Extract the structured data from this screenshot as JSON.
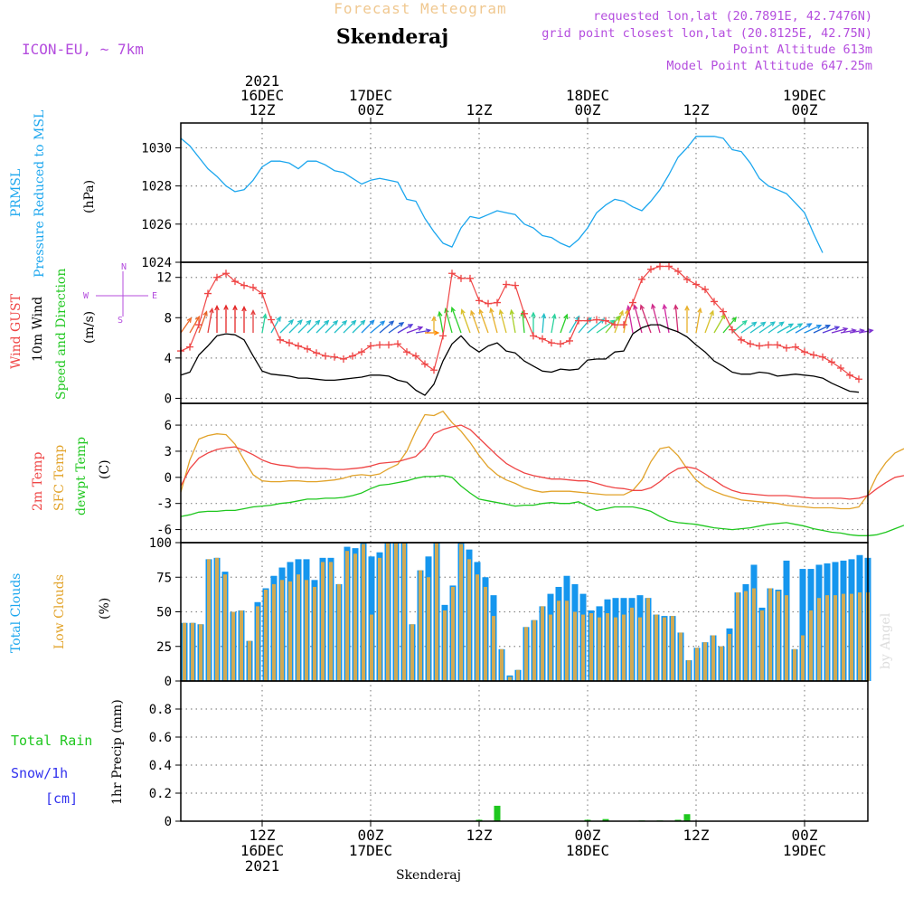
{
  "header": {
    "subtitle": "Forecast Meteogram",
    "location": "Skenderaj",
    "model": "ICON-EU, ~ 7km",
    "requested": "requested lon,lat (20.7891E, 42.7476N)",
    "gridpoint": "grid point closest lon,lat (20.8125E, 42.75N)",
    "point_alt": "Point Altitude 613m",
    "model_alt": "Model Point Altitude 647.25m"
  },
  "watermark": "by Angel",
  "footer_location": "Skenderaj",
  "compass": {
    "n": "N",
    "s": "S",
    "e": "E",
    "w": "W"
  },
  "colors": {
    "prmsl": "#1ba6ee",
    "gust": "#ef4545",
    "wind10m": "#000000",
    "t2m": "#ef4545",
    "sfc": "#e2a32a",
    "dewpt": "#1fc71f",
    "total_cloud": "#1596ee",
    "low_cloud": "#d0aa55",
    "rain": "#1fc71f",
    "snow": "#3333ee",
    "title_purple": "#b44dde",
    "subtitle": "#f0c890"
  },
  "labels": {
    "p1": [
      "PRMSL",
      "Pressure Reduced to MSL",
      "(hPa)"
    ],
    "p2": [
      "Wind GUST",
      "10m Wind",
      "Speed and Direction",
      "(m/s)"
    ],
    "p3": [
      "2m Temp",
      "SFC Temp",
      "dewpt Temp",
      "(C)"
    ],
    "p4": [
      "Total Clouds",
      "Low Clouds",
      "(%)"
    ],
    "p5": [
      "Total  Rain",
      "Snow/1h",
      "[cm]",
      "1hr Precip (mm)"
    ]
  },
  "chart_data": [
    {
      "type": "line",
      "title": "PRMSL Pressure Reduced to MSL",
      "ylabel": "(hPa)",
      "ylim": [
        1024,
        1031.3
      ],
      "yticks": [
        1024,
        1026,
        1028,
        1030
      ],
      "x_start_hour": 3,
      "x_step_hours": 1,
      "x_ticks": [
        {
          "hour": 12,
          "top": [
            "2021",
            "16DEC",
            "12Z"
          ],
          "bottom": [
            "12Z",
            "16DEC",
            "2021"
          ]
        },
        {
          "hour": 24,
          "top": [
            "17DEC",
            "00Z"
          ],
          "bottom": [
            "00Z",
            "17DEC"
          ]
        },
        {
          "hour": 36,
          "top": [
            "12Z"
          ],
          "bottom": [
            "12Z"
          ]
        },
        {
          "hour": 48,
          "top": [
            "18DEC",
            "00Z"
          ],
          "bottom": [
            "00Z",
            "18DEC"
          ]
        },
        {
          "hour": 60,
          "top": [
            "12Z"
          ],
          "bottom": [
            "12Z"
          ]
        },
        {
          "hour": 72,
          "top": [
            "19DEC",
            "00Z"
          ],
          "bottom": [
            "00Z",
            "19DEC"
          ]
        }
      ],
      "series": [
        {
          "name": "PRMSL",
          "values": [
            1030.5,
            1030.1,
            1029.5,
            1028.9,
            1028.5,
            1028.0,
            1027.7,
            1027.8,
            1028.3,
            1029.0,
            1029.3,
            1029.3,
            1029.2,
            1028.9,
            1029.3,
            1029.3,
            1029.1,
            1028.8,
            1028.7,
            1028.4,
            1028.1,
            1028.3,
            1028.4,
            1028.3,
            1028.2,
            1027.3,
            1027.2,
            1026.3,
            1025.6,
            1025.0,
            1024.8,
            1025.8,
            1026.4,
            1026.3,
            1026.5,
            1026.7,
            1026.6,
            1026.5,
            1026.0,
            1025.8,
            1025.4,
            1025.3,
            1025.0,
            1024.8,
            1025.2,
            1025.8,
            1026.6,
            1027.0,
            1027.3,
            1027.2,
            1026.9,
            1026.7,
            1027.2,
            1027.8,
            1028.6,
            1029.5,
            1030.0,
            1030.6,
            1030.6,
            1030.6,
            1030.5,
            1029.9,
            1029.8,
            1029.2,
            1028.4,
            1028.0,
            1027.8,
            1027.6,
            1027.1,
            1026.6,
            1025.5,
            1024.5
          ]
        }
      ]
    },
    {
      "type": "line",
      "title": "Wind GUST / 10m Wind Speed and Direction",
      "ylabel": "(m/s)",
      "ylim": [
        -0.5,
        13.5
      ],
      "yticks": [
        0,
        4,
        8,
        12
      ],
      "series": [
        {
          "name": "Wind GUST",
          "values": [
            4.7,
            5.1,
            7.3,
            10.4,
            12.0,
            12.4,
            11.6,
            11.2,
            11.0,
            10.4,
            7.8,
            5.8,
            5.5,
            5.2,
            4.9,
            4.5,
            4.2,
            4.1,
            3.9,
            4.2,
            4.6,
            5.2,
            5.3,
            5.3,
            5.4,
            4.6,
            4.2,
            3.4,
            2.8,
            6.2,
            12.4,
            11.9,
            11.9,
            9.7,
            9.4,
            9.5,
            11.3,
            11.2,
            8.4,
            6.2,
            5.9,
            5.5,
            5.4,
            5.7,
            7.7,
            7.7,
            7.8,
            7.7,
            7.3,
            7.3,
            9.5,
            11.8,
            12.8,
            13.1,
            13.1,
            12.6,
            11.8,
            11.3,
            10.8,
            9.6,
            8.6,
            6.8,
            5.8,
            5.4,
            5.2,
            5.3,
            5.3,
            5.0,
            5.1,
            4.6,
            4.3,
            4.1,
            3.6,
            3.0,
            2.3,
            1.9
          ]
        },
        {
          "name": "10m Wind",
          "values": [
            2.3,
            2.6,
            4.3,
            5.2,
            6.2,
            6.4,
            6.3,
            5.8,
            4.2,
            2.7,
            2.4,
            2.3,
            2.2,
            2.0,
            2.0,
            1.9,
            1.8,
            1.8,
            1.9,
            2.0,
            2.1,
            2.3,
            2.3,
            2.2,
            1.8,
            1.6,
            0.8,
            0.3,
            1.4,
            3.7,
            5.4,
            6.2,
            5.2,
            4.6,
            5.2,
            5.5,
            4.7,
            4.5,
            3.7,
            3.2,
            2.7,
            2.6,
            2.9,
            2.8,
            2.9,
            3.8,
            3.9,
            3.9,
            4.6,
            4.7,
            6.4,
            7.0,
            7.3,
            7.3,
            6.9,
            6.6,
            6.1,
            5.3,
            4.6,
            3.7,
            3.2,
            2.6,
            2.4,
            2.4,
            2.6,
            2.5,
            2.2,
            2.3,
            2.4,
            2.3,
            2.2,
            2.0,
            1.5,
            1.1,
            0.7,
            0.6
          ]
        }
      ],
      "wind_arrows": {
        "start_hour": 3,
        "step_hours": 1,
        "y_level": 6.5,
        "dirs": [
          215,
          210,
          200,
          190,
          180,
          180,
          180,
          180,
          180,
          190,
          210,
          225,
          225,
          225,
          225,
          225,
          225,
          225,
          225,
          225,
          225,
          230,
          230,
          235,
          240,
          250,
          260,
          270,
          180,
          170,
          165,
          160,
          160,
          160,
          160,
          165,
          165,
          170,
          175,
          180,
          185,
          190,
          200,
          210,
          220,
          230,
          235,
          220,
          200,
          190,
          170,
          165,
          160,
          165,
          170,
          175,
          180,
          190,
          200,
          210,
          220,
          230,
          235,
          235,
          235,
          235,
          240,
          240,
          240,
          245,
          245,
          250,
          255,
          260,
          260,
          260
        ],
        "colors": [
          "#ee6a2a",
          "#ee6a2a",
          "#e56326",
          "#e43f3f",
          "#e42626",
          "#e42626",
          "#e42626",
          "#e42626",
          "#e43f3f",
          "#2ad39d",
          "#23c0c8",
          "#23c0c8",
          "#23c0c8",
          "#23c0c8",
          "#23c0c8",
          "#23c0c8",
          "#23c0c8",
          "#23c0c8",
          "#23c0c8",
          "#23c0c8",
          "#1e90e8",
          "#1e90e8",
          "#2060d0",
          "#2060d0",
          "#5a3bd8",
          "#7b2fd0",
          "#5a3bd8",
          "#ff8800",
          "#e8b02a",
          "#2cd02c",
          "#2cd02c",
          "#2cd02c",
          "#d8c02a",
          "#e8b02a",
          "#e8b02a",
          "#e8b02a",
          "#d8c02a",
          "#a8d02a",
          "#2cd02c",
          "#2ad39d",
          "#23c0c8",
          "#2ad39d",
          "#2cd02c",
          "#23c0c8",
          "#23c0c8",
          "#23c0c8",
          "#2ad39d",
          "#7bd02a",
          "#d8c02a",
          "#e8b02a",
          "#d02aa0",
          "#d02a8a",
          "#d02a70",
          "#d02a8a",
          "#d02aa0",
          "#d02a70",
          "#e8b02a",
          "#e8b02a",
          "#d8c02a",
          "#a8d02a",
          "#2cd02c",
          "#2ad39d",
          "#23c0c8",
          "#23c0c8",
          "#23c0c8",
          "#23c0c8",
          "#23c0c8",
          "#23c0c8",
          "#1e90e8",
          "#1e90e8",
          "#2060d0",
          "#5a3bd8",
          "#7b2fd0",
          "#7b2fd0",
          "#7b2fd0",
          "#7b2fd0"
        ]
      }
    },
    {
      "type": "line",
      "title": "2m Temp / SFC Temp / dewpt Temp",
      "ylabel": "(C)",
      "ylim": [
        -7.5,
        8.5
      ],
      "yticks": [
        -6,
        -3,
        0,
        3,
        6
      ],
      "series": [
        {
          "name": "2m Temp",
          "values": [
            -1.0,
            1.0,
            2.2,
            2.8,
            3.2,
            3.4,
            3.5,
            3.1,
            2.6,
            2.0,
            1.6,
            1.4,
            1.3,
            1.1,
            1.1,
            1.0,
            1.0,
            0.9,
            0.9,
            1.0,
            1.1,
            1.3,
            1.6,
            1.7,
            1.8,
            2.1,
            2.4,
            3.4,
            5.0,
            5.5,
            5.8,
            6.0,
            5.5,
            4.5,
            3.5,
            2.5,
            1.6,
            1.0,
            0.5,
            0.2,
            0.0,
            -0.2,
            -0.2,
            -0.3,
            -0.4,
            -0.4,
            -0.7,
            -1.0,
            -1.2,
            -1.3,
            -1.5,
            -1.5,
            -1.2,
            -0.5,
            0.4,
            1.0,
            1.2,
            1.0,
            0.4,
            -0.3,
            -1.0,
            -1.5,
            -1.8,
            -1.9,
            -2.0,
            -2.1,
            -2.1,
            -2.1,
            -2.2,
            -2.3,
            -2.4,
            -2.4,
            -2.4,
            -2.4,
            -2.5,
            -2.4,
            -2.1,
            -1.3,
            -0.6,
            0.0,
            0.2
          ]
        },
        {
          "name": "SFC Temp",
          "values": [
            -1.7,
            2.0,
            4.4,
            4.8,
            5.0,
            4.9,
            3.8,
            2.0,
            0.3,
            -0.4,
            -0.5,
            -0.5,
            -0.4,
            -0.4,
            -0.5,
            -0.5,
            -0.4,
            -0.3,
            -0.1,
            0.2,
            0.3,
            0.2,
            0.4,
            1.0,
            1.5,
            3.0,
            5.3,
            7.2,
            7.1,
            7.6,
            6.3,
            5.3,
            4.0,
            2.5,
            1.2,
            0.3,
            -0.3,
            -0.7,
            -1.2,
            -1.5,
            -1.7,
            -1.6,
            -1.6,
            -1.6,
            -1.7,
            -1.8,
            -1.9,
            -2.0,
            -2.0,
            -2.0,
            -1.5,
            -0.3,
            1.8,
            3.3,
            3.5,
            2.5,
            1.0,
            -0.3,
            -1.1,
            -1.6,
            -2.0,
            -2.3,
            -2.6,
            -2.7,
            -2.8,
            -2.9,
            -3.0,
            -3.2,
            -3.3,
            -3.4,
            -3.5,
            -3.5,
            -3.5,
            -3.6,
            -3.6,
            -3.4,
            -2.0,
            0.2,
            1.7,
            2.8,
            3.3
          ]
        },
        {
          "name": "dewpt Temp",
          "values": [
            -4.5,
            -4.3,
            -4.0,
            -3.9,
            -3.9,
            -3.8,
            -3.8,
            -3.6,
            -3.4,
            -3.3,
            -3.2,
            -3.0,
            -2.9,
            -2.7,
            -2.5,
            -2.5,
            -2.4,
            -2.4,
            -2.3,
            -2.1,
            -1.8,
            -1.3,
            -0.9,
            -0.8,
            -0.6,
            -0.4,
            -0.1,
            0.1,
            0.1,
            0.2,
            0.0,
            -1.0,
            -1.8,
            -2.5,
            -2.7,
            -2.9,
            -3.1,
            -3.3,
            -3.2,
            -3.2,
            -3.0,
            -2.9,
            -3.0,
            -3.0,
            -2.8,
            -3.3,
            -3.8,
            -3.6,
            -3.4,
            -3.4,
            -3.4,
            -3.6,
            -3.9,
            -4.5,
            -5.0,
            -5.2,
            -5.3,
            -5.4,
            -5.6,
            -5.8,
            -5.9,
            -6.0,
            -5.9,
            -5.8,
            -5.6,
            -5.4,
            -5.3,
            -5.2,
            -5.4,
            -5.6,
            -5.9,
            -6.1,
            -6.3,
            -6.4,
            -6.6,
            -6.7,
            -6.7,
            -6.6,
            -6.3,
            -5.9,
            -5.5
          ]
        }
      ]
    },
    {
      "type": "bar",
      "title": "Total Clouds / Low Clouds",
      "ylabel": "(%)",
      "ylim": [
        0,
        100
      ],
      "yticks": [
        0,
        25,
        50,
        75,
        100
      ],
      "series": [
        {
          "name": "Total Clouds",
          "values": [
            42,
            42,
            41,
            88,
            89,
            79,
            50,
            51,
            29,
            57,
            67,
            76,
            82,
            86,
            88,
            88,
            73,
            89,
            89,
            70,
            97,
            96,
            100,
            90,
            93,
            100,
            100,
            100,
            41,
            80,
            90,
            100,
            55,
            69,
            100,
            95,
            86,
            75,
            62,
            23,
            4,
            8,
            39,
            44,
            54,
            63,
            68,
            76,
            70,
            63,
            51,
            54,
            59,
            60,
            60,
            60,
            62,
            60,
            48,
            47,
            47,
            35,
            15,
            24,
            28,
            33,
            25,
            38,
            64,
            70,
            84,
            53,
            67,
            66,
            87,
            23,
            81,
            81,
            84,
            85,
            86,
            87,
            88,
            91,
            89
          ]
        },
        {
          "name": "Low Clouds",
          "values": [
            42,
            42,
            41,
            88,
            89,
            77,
            50,
            51,
            29,
            54,
            66,
            70,
            73,
            72,
            77,
            73,
            68,
            86,
            86,
            70,
            94,
            92,
            99,
            48,
            89,
            100,
            100,
            100,
            41,
            80,
            75,
            100,
            51,
            68,
            99,
            88,
            77,
            68,
            47,
            23,
            3,
            8,
            39,
            44,
            54,
            48,
            58,
            58,
            50,
            48,
            49,
            46,
            49,
            46,
            48,
            53,
            46,
            60,
            48,
            46,
            47,
            35,
            15,
            24,
            28,
            33,
            25,
            34,
            64,
            65,
            67,
            51,
            67,
            65,
            62,
            23,
            33,
            51,
            60,
            62,
            62,
            63,
            63,
            64,
            64
          ]
        }
      ]
    },
    {
      "type": "bar",
      "title": "1hr Precip",
      "ylabel": "1hr Precip (mm)",
      "ylim": [
        0,
        1.0
      ],
      "yticks": [
        0,
        0.2,
        0.4,
        0.6,
        0.8
      ],
      "series": [
        {
          "name": "Total Rain",
          "bars": [
            {
              "hour": 36,
              "value": 0.01
            },
            {
              "hour": 38,
              "value": 0.11
            },
            {
              "hour": 48,
              "value": 0.01
            },
            {
              "hour": 50,
              "value": 0.015
            },
            {
              "hour": 54,
              "value": 0.005
            },
            {
              "hour": 56,
              "value": 0.005
            },
            {
              "hour": 58,
              "value": 0.01
            },
            {
              "hour": 59,
              "value": 0.05
            }
          ]
        },
        {
          "name": "Snow",
          "bars": []
        }
      ]
    }
  ]
}
